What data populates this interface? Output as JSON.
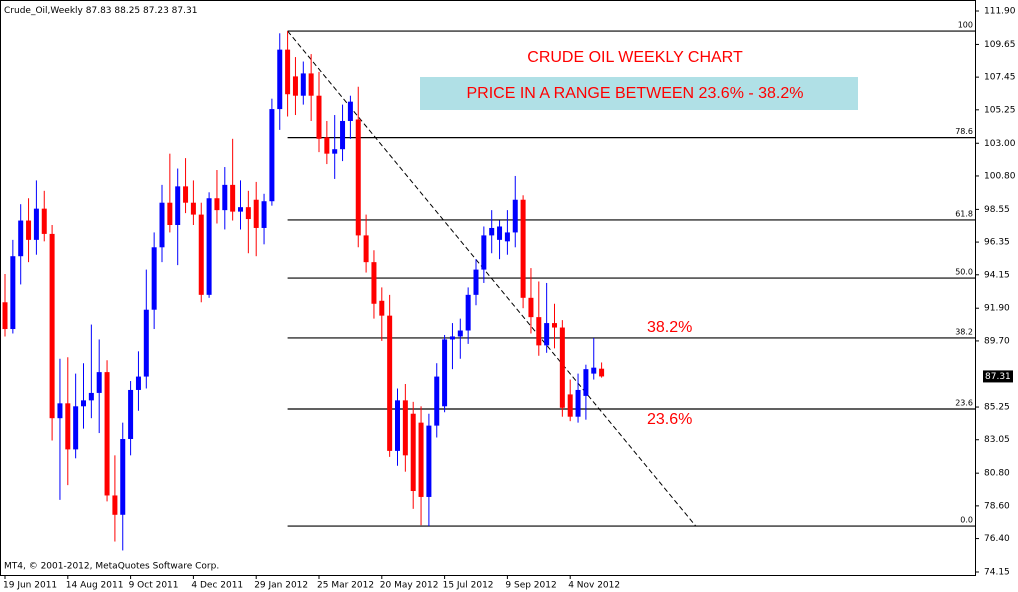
{
  "chart_data": {
    "type": "candlestick",
    "title": "Crude_Oil,Weekly",
    "annotation_title": "CRUDE OIL WEEKLY CHART",
    "annotation_box": "PRICE IN A RANGE BETWEEN 23.6% - 38.2%",
    "annotation_upper": "38.2%",
    "annotation_lower": "23.6%",
    "copyright": "MT4, © 2001-2012, MetaQuotes Software Corp.",
    "up_color": "#0000ff",
    "down_color": "#ff0000",
    "categories": [
      "19 Jun 2011",
      null,
      null,
      null,
      null,
      null,
      null,
      null,
      "14 Aug 2011",
      null,
      null,
      null,
      null,
      null,
      null,
      null,
      "9 Oct 2011",
      null,
      null,
      null,
      null,
      null,
      null,
      null,
      "4 Dec 2011",
      null,
      null,
      null,
      null,
      null,
      null,
      null,
      "29 Jan 2012",
      null,
      null,
      null,
      null,
      null,
      null,
      null,
      "25 Mar 2012",
      null,
      null,
      null,
      null,
      null,
      null,
      null,
      "20 May 2012",
      null,
      null,
      null,
      null,
      null,
      null,
      null,
      "15 Jul 2012",
      null,
      null,
      null,
      null,
      null,
      null,
      null,
      "9 Sep 2012",
      null,
      null,
      null,
      null,
      null,
      null,
      null,
      "4 Nov 2012",
      null,
      null,
      null,
      null
    ],
    "open": [
      92.3,
      90.5,
      95.4,
      97.8,
      96.5,
      98.6,
      96.9,
      84.5,
      85.5,
      82.4,
      85.3,
      85.7,
      86.2,
      87.6,
      79.3,
      78.0,
      83.1,
      86.4,
      87.3,
      91.8,
      96.0,
      99.0,
      97.5,
      100.1,
      99.0,
      98.2,
      92.8,
      99.3,
      98.5,
      100.2,
      98.4,
      98.7,
      99.2,
      97.3,
      99.1,
      105.3,
      109.3,
      107.5,
      106.2,
      107.7,
      106.2,
      103.4,
      102.3,
      102.6,
      104.5,
      104.6,
      96.8,
      95.0,
      92.4,
      91.4,
      82.3,
      85.7,
      84.8,
      84.2,
      79.2,
      84.0,
      85.3,
      89.8,
      90.0,
      90.4,
      92.8,
      94.5,
      96.8,
      96.5,
      96.4,
      97.0,
      99.2,
      92.6,
      91.3,
      89.4,
      90.9,
      90.6,
      86.1,
      84.6,
      86.0,
      87.5,
      87.83
    ],
    "high": [
      94.2,
      96.5,
      98.9,
      99.3,
      100.5,
      99.8,
      97.5,
      88.5,
      88.6,
      87.5,
      88.2,
      90.8,
      89.8,
      88.4,
      82.0,
      84.2,
      87.0,
      89.0,
      94.5,
      97.0,
      100.2,
      102.3,
      101.3,
      102.0,
      100.5,
      99.0,
      99.7,
      101.2,
      101.4,
      103.3,
      100.5,
      99.8,
      100.4,
      99.6,
      106.0,
      110.4,
      110.55,
      108.8,
      108.5,
      109.0,
      107.8,
      104.5,
      104.9,
      105.6,
      106.2,
      106.8,
      98.2,
      95.8,
      93.3,
      92.8,
      86.5,
      86.8,
      85.6,
      85.3,
      84.8,
      88.2,
      90.1,
      90.9,
      91.2,
      93.3,
      95.2,
      97.4,
      98.5,
      97.8,
      98.5,
      100.8,
      99.5,
      94.6,
      93.7,
      93.6,
      92.2,
      91.1,
      87.1,
      87.5,
      88.1,
      89.9,
      88.25
    ],
    "low": [
      90.0,
      90.2,
      93.5,
      95.0,
      95.5,
      96.4,
      83.0,
      79.0,
      80.0,
      81.8,
      83.8,
      84.5,
      83.5,
      78.9,
      76.2,
      75.6,
      82.0,
      85.0,
      86.5,
      90.5,
      95.0,
      97.0,
      94.8,
      98.3,
      97.5,
      92.3,
      92.6,
      97.6,
      97.2,
      97.8,
      97.2,
      95.6,
      95.4,
      96.2,
      98.8,
      103.9,
      104.8,
      104.9,
      105.6,
      104.5,
      102.4,
      101.6,
      100.6,
      101.8,
      103.3,
      96.0,
      94.3,
      91.2,
      89.7,
      81.9,
      81.3,
      80.9,
      78.4,
      77.3,
      77.24,
      83.2,
      84.9,
      87.8,
      88.5,
      89.5,
      92.1,
      93.6,
      95.6,
      95.2,
      95.5,
      96.0,
      91.9,
      90.2,
      88.7,
      88.9,
      89.2,
      84.6,
      84.3,
      84.2,
      84.4,
      87.1,
      87.23
    ],
    "close": [
      90.5,
      95.4,
      97.8,
      96.5,
      98.6,
      96.9,
      84.5,
      85.5,
      82.4,
      85.3,
      85.7,
      86.2,
      87.6,
      79.3,
      78.0,
      83.1,
      86.4,
      87.3,
      91.8,
      96.0,
      99.0,
      97.5,
      100.1,
      99.0,
      98.2,
      92.8,
      99.3,
      98.5,
      100.2,
      98.4,
      98.7,
      97.9,
      97.3,
      99.1,
      105.3,
      109.3,
      106.3,
      106.2,
      107.7,
      106.2,
      103.3,
      102.3,
      102.6,
      104.5,
      105.8,
      96.8,
      95.0,
      92.2,
      91.4,
      82.3,
      85.7,
      82.0,
      79.6,
      79.2,
      84.0,
      87.3,
      89.8,
      90.0,
      90.4,
      92.8,
      94.5,
      96.8,
      97.3,
      97.4,
      97.0,
      99.2,
      92.6,
      91.3,
      89.4,
      90.9,
      90.6,
      85.2,
      84.6,
      86.4,
      87.8,
      87.9,
      87.31
    ],
    "fib_levels": [
      {
        "label": "100",
        "value": 110.55
      },
      {
        "label": "78.6",
        "value": 103.38
      },
      {
        "label": "61.8",
        "value": 97.84
      },
      {
        "label": "50.0",
        "value": 93.93
      },
      {
        "label": "38.2",
        "value": 89.9
      },
      {
        "label": "23.6",
        "value": 85.12
      },
      {
        "label": "0.0",
        "value": 77.24
      }
    ],
    "fib_start": 36,
    "trendline": {
      "x": [
        36,
        88
      ],
      "y": [
        110.55,
        77.24
      ]
    },
    "ylim": [
      74.15,
      111.9
    ],
    "yticks": [
      {
        "value": 111.9,
        "label": "111.90"
      },
      109.65,
      107.45,
      105.25,
      {
        "value": 103,
        "label": "103.00"
      },
      {
        "value": 100.8,
        "label": "100.80"
      },
      98.55,
      96.35,
      94.15,
      {
        "value": 91.9,
        "label": "91.90"
      },
      {
        "value": 89.7,
        "label": "89.70"
      },
      85.25,
      83.05,
      {
        "value": 80.8,
        "label": "80.80"
      },
      {
        "value": 78.6,
        "label": "78.60"
      },
      {
        "value": 76.4,
        "label": "76.40"
      },
      74.15
    ]
  }
}
